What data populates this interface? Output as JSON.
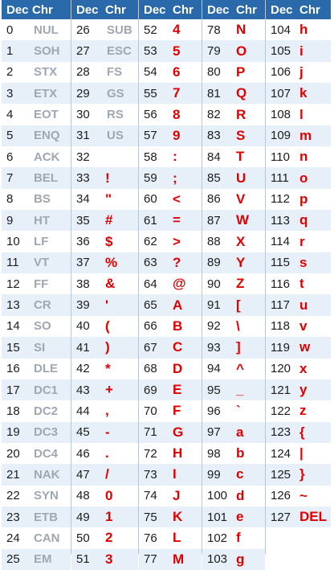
{
  "header": {
    "dec_label": "Dec",
    "chr_label": "Chr"
  },
  "colors": {
    "header_bg": "#2a6aab",
    "row_alt": "#e7f0f9",
    "control_text": "#9ea7b2",
    "printable_text": "#e00000"
  },
  "columns": [
    {
      "rows": [
        {
          "dec": "0",
          "chr": "NUL"
        },
        {
          "dec": "1",
          "chr": "SOH"
        },
        {
          "dec": "2",
          "chr": "STX"
        },
        {
          "dec": "3",
          "chr": "ETX"
        },
        {
          "dec": "4",
          "chr": "EOT"
        },
        {
          "dec": "5",
          "chr": "ENQ"
        },
        {
          "dec": "6",
          "chr": "ACK"
        },
        {
          "dec": "7",
          "chr": "BEL"
        },
        {
          "dec": "8",
          "chr": "BS"
        },
        {
          "dec": "9",
          "chr": "HT"
        },
        {
          "dec": "10",
          "chr": "LF"
        },
        {
          "dec": "11",
          "chr": "VT"
        },
        {
          "dec": "12",
          "chr": "FF"
        },
        {
          "dec": "13",
          "chr": "CR"
        },
        {
          "dec": "14",
          "chr": "SO"
        },
        {
          "dec": "15",
          "chr": "SI"
        },
        {
          "dec": "16",
          "chr": "DLE"
        },
        {
          "dec": "17",
          "chr": "DC1"
        },
        {
          "dec": "18",
          "chr": "DC2"
        },
        {
          "dec": "19",
          "chr": "DC3"
        },
        {
          "dec": "20",
          "chr": "DC4"
        },
        {
          "dec": "21",
          "chr": "NAK"
        },
        {
          "dec": "22",
          "chr": "SYN"
        },
        {
          "dec": "23",
          "chr": "ETB"
        },
        {
          "dec": "24",
          "chr": "CAN"
        },
        {
          "dec": "25",
          "chr": "EM"
        }
      ]
    },
    {
      "rows": [
        {
          "dec": "26",
          "chr": "SUB"
        },
        {
          "dec": "27",
          "chr": "ESC"
        },
        {
          "dec": "28",
          "chr": "FS"
        },
        {
          "dec": "29",
          "chr": "GS"
        },
        {
          "dec": "30",
          "chr": "RS"
        },
        {
          "dec": "31",
          "chr": "US"
        },
        {
          "dec": "32",
          "chr": ""
        },
        {
          "dec": "33",
          "chr": "!"
        },
        {
          "dec": "34",
          "chr": "\""
        },
        {
          "dec": "35",
          "chr": "#"
        },
        {
          "dec": "36",
          "chr": "$"
        },
        {
          "dec": "37",
          "chr": "%"
        },
        {
          "dec": "38",
          "chr": "&"
        },
        {
          "dec": "39",
          "chr": "'"
        },
        {
          "dec": "40",
          "chr": "("
        },
        {
          "dec": "41",
          "chr": ")"
        },
        {
          "dec": "42",
          "chr": "*"
        },
        {
          "dec": "43",
          "chr": "+"
        },
        {
          "dec": "44",
          "chr": ","
        },
        {
          "dec": "45",
          "chr": "-"
        },
        {
          "dec": "46",
          "chr": "."
        },
        {
          "dec": "47",
          "chr": "/"
        },
        {
          "dec": "48",
          "chr": "0"
        },
        {
          "dec": "49",
          "chr": "1"
        },
        {
          "dec": "50",
          "chr": "2"
        },
        {
          "dec": "51",
          "chr": "3"
        }
      ]
    },
    {
      "rows": [
        {
          "dec": "52",
          "chr": "4"
        },
        {
          "dec": "53",
          "chr": "5"
        },
        {
          "dec": "54",
          "chr": "6"
        },
        {
          "dec": "55",
          "chr": "7"
        },
        {
          "dec": "56",
          "chr": "8"
        },
        {
          "dec": "57",
          "chr": "9"
        },
        {
          "dec": "58",
          "chr": ":"
        },
        {
          "dec": "59",
          "chr": ";"
        },
        {
          "dec": "60",
          "chr": "<"
        },
        {
          "dec": "61",
          "chr": "="
        },
        {
          "dec": "62",
          "chr": ">"
        },
        {
          "dec": "63",
          "chr": "?"
        },
        {
          "dec": "64",
          "chr": "@"
        },
        {
          "dec": "65",
          "chr": "A"
        },
        {
          "dec": "66",
          "chr": "B"
        },
        {
          "dec": "67",
          "chr": "C"
        },
        {
          "dec": "68",
          "chr": "D"
        },
        {
          "dec": "69",
          "chr": "E"
        },
        {
          "dec": "70",
          "chr": "F"
        },
        {
          "dec": "71",
          "chr": "G"
        },
        {
          "dec": "72",
          "chr": "H"
        },
        {
          "dec": "73",
          "chr": "I"
        },
        {
          "dec": "74",
          "chr": "J"
        },
        {
          "dec": "75",
          "chr": "K"
        },
        {
          "dec": "76",
          "chr": "L"
        },
        {
          "dec": "77",
          "chr": "M"
        }
      ]
    },
    {
      "rows": [
        {
          "dec": "78",
          "chr": "N"
        },
        {
          "dec": "79",
          "chr": "O"
        },
        {
          "dec": "80",
          "chr": "P"
        },
        {
          "dec": "81",
          "chr": "Q"
        },
        {
          "dec": "82",
          "chr": "R"
        },
        {
          "dec": "83",
          "chr": "S"
        },
        {
          "dec": "84",
          "chr": "T"
        },
        {
          "dec": "85",
          "chr": "U"
        },
        {
          "dec": "86",
          "chr": "V"
        },
        {
          "dec": "87",
          "chr": "W"
        },
        {
          "dec": "88",
          "chr": "X"
        },
        {
          "dec": "89",
          "chr": "Y"
        },
        {
          "dec": "90",
          "chr": "Z"
        },
        {
          "dec": "91",
          "chr": "["
        },
        {
          "dec": "92",
          "chr": "\\"
        },
        {
          "dec": "93",
          "chr": "]"
        },
        {
          "dec": "94",
          "chr": "^"
        },
        {
          "dec": "95",
          "chr": "_"
        },
        {
          "dec": "96",
          "chr": "`"
        },
        {
          "dec": "97",
          "chr": "a"
        },
        {
          "dec": "98",
          "chr": "b"
        },
        {
          "dec": "99",
          "chr": "c"
        },
        {
          "dec": "100",
          "chr": "d"
        },
        {
          "dec": "101",
          "chr": "e"
        },
        {
          "dec": "102",
          "chr": "f"
        },
        {
          "dec": "103",
          "chr": "g"
        }
      ]
    },
    {
      "rows": [
        {
          "dec": "104",
          "chr": "h"
        },
        {
          "dec": "105",
          "chr": "i"
        },
        {
          "dec": "106",
          "chr": "j"
        },
        {
          "dec": "107",
          "chr": "k"
        },
        {
          "dec": "108",
          "chr": "l"
        },
        {
          "dec": "109",
          "chr": "m"
        },
        {
          "dec": "110",
          "chr": "n"
        },
        {
          "dec": "111",
          "chr": "o"
        },
        {
          "dec": "112",
          "chr": "p"
        },
        {
          "dec": "113",
          "chr": "q"
        },
        {
          "dec": "114",
          "chr": "r"
        },
        {
          "dec": "115",
          "chr": "s"
        },
        {
          "dec": "116",
          "chr": "t"
        },
        {
          "dec": "117",
          "chr": "u"
        },
        {
          "dec": "118",
          "chr": "v"
        },
        {
          "dec": "119",
          "chr": "w"
        },
        {
          "dec": "120",
          "chr": "x"
        },
        {
          "dec": "121",
          "chr": "y"
        },
        {
          "dec": "122",
          "chr": "z"
        },
        {
          "dec": "123",
          "chr": "{"
        },
        {
          "dec": "124",
          "chr": "|"
        },
        {
          "dec": "125",
          "chr": "}"
        },
        {
          "dec": "126",
          "chr": "~"
        },
        {
          "dec": "127",
          "chr": "DEL"
        }
      ]
    }
  ]
}
